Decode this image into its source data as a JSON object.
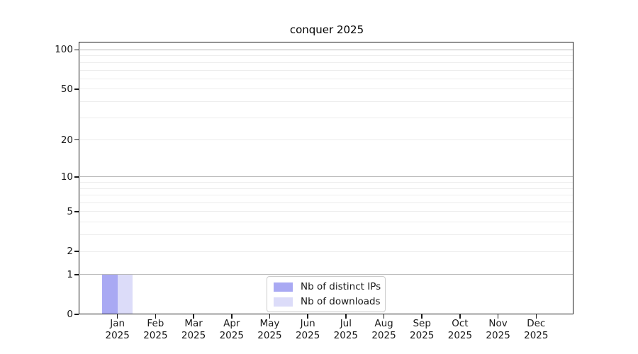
{
  "chart_data": {
    "type": "bar",
    "title": "conquer 2025",
    "x": {
      "months": [
        "Jan",
        "Feb",
        "Mar",
        "Apr",
        "May",
        "Jun",
        "Jul",
        "Aug",
        "Sep",
        "Oct",
        "Nov",
        "Dec"
      ],
      "year": "2025"
    },
    "series": [
      {
        "name": "Nb of distinct IPs",
        "color": "#a9a9f3",
        "values": [
          1,
          0,
          0,
          0,
          0,
          0,
          0,
          0,
          0,
          0,
          0,
          0
        ]
      },
      {
        "name": "Nb of downloads",
        "color": "#dcdcf9",
        "values": [
          1,
          0,
          0,
          0,
          0,
          0,
          0,
          0,
          0,
          0,
          0,
          0
        ]
      }
    ],
    "y_axis": {
      "scale": "log10(1+v)",
      "tick_labels": [
        0,
        1,
        2,
        5,
        10,
        20,
        50,
        100
      ],
      "emphasized_gridlines": [
        1,
        10,
        100
      ],
      "minor_gridlines": [
        2,
        3,
        4,
        5,
        6,
        7,
        8,
        9,
        20,
        30,
        40,
        50,
        60,
        70,
        80,
        90
      ],
      "range_max": 113
    },
    "legend": {
      "position": "lower center inside",
      "entries": [
        "Nb of distinct IPs",
        "Nb of downloads"
      ]
    },
    "grid": "horizontal"
  },
  "colors": {
    "background": "#ffffff",
    "axis": "#1a1a1a",
    "grid_minor": "#ededed",
    "grid_emphasized": "#b8b8b8",
    "legend_border": "#cccccc",
    "bar_distinct_ips": "#a9a9f3",
    "bar_downloads": "#dcdcf9"
  }
}
